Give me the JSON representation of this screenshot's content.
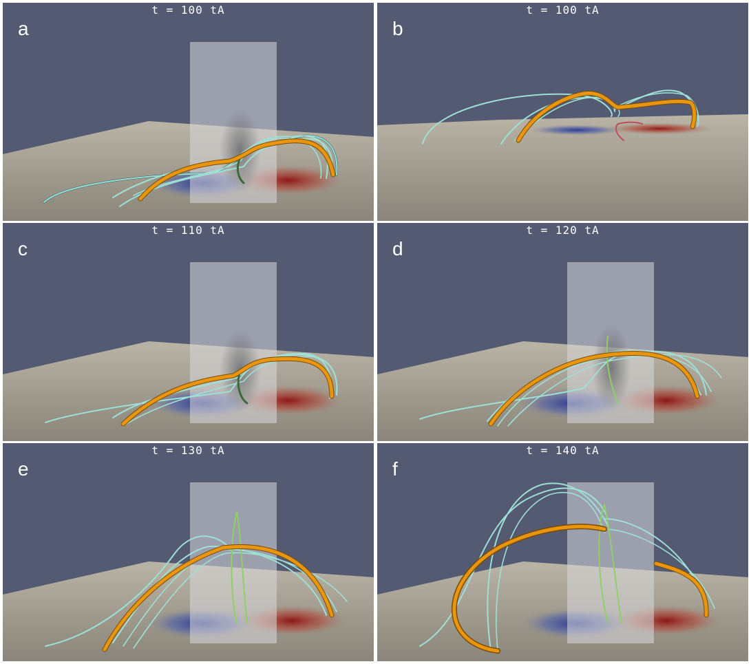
{
  "panels": [
    {
      "label": "a",
      "time": "t = 100 tA"
    },
    {
      "label": "b",
      "time": "t = 100 tA"
    },
    {
      "label": "c",
      "time": "t = 110 tA"
    },
    {
      "label": "d",
      "time": "t = 120 tA"
    },
    {
      "label": "e",
      "time": "t = 130 tA"
    },
    {
      "label": "f",
      "time": "t = 140 tA"
    }
  ],
  "colors": {
    "background": "#535a72",
    "ground": "#9b9688",
    "negative_polarity": "#2f3f9a",
    "positive_polarity": "#9c1b1b",
    "flux_rope": "#e8960f",
    "field_lines": "#9fe0d6",
    "plane": "#d8d8dc"
  }
}
